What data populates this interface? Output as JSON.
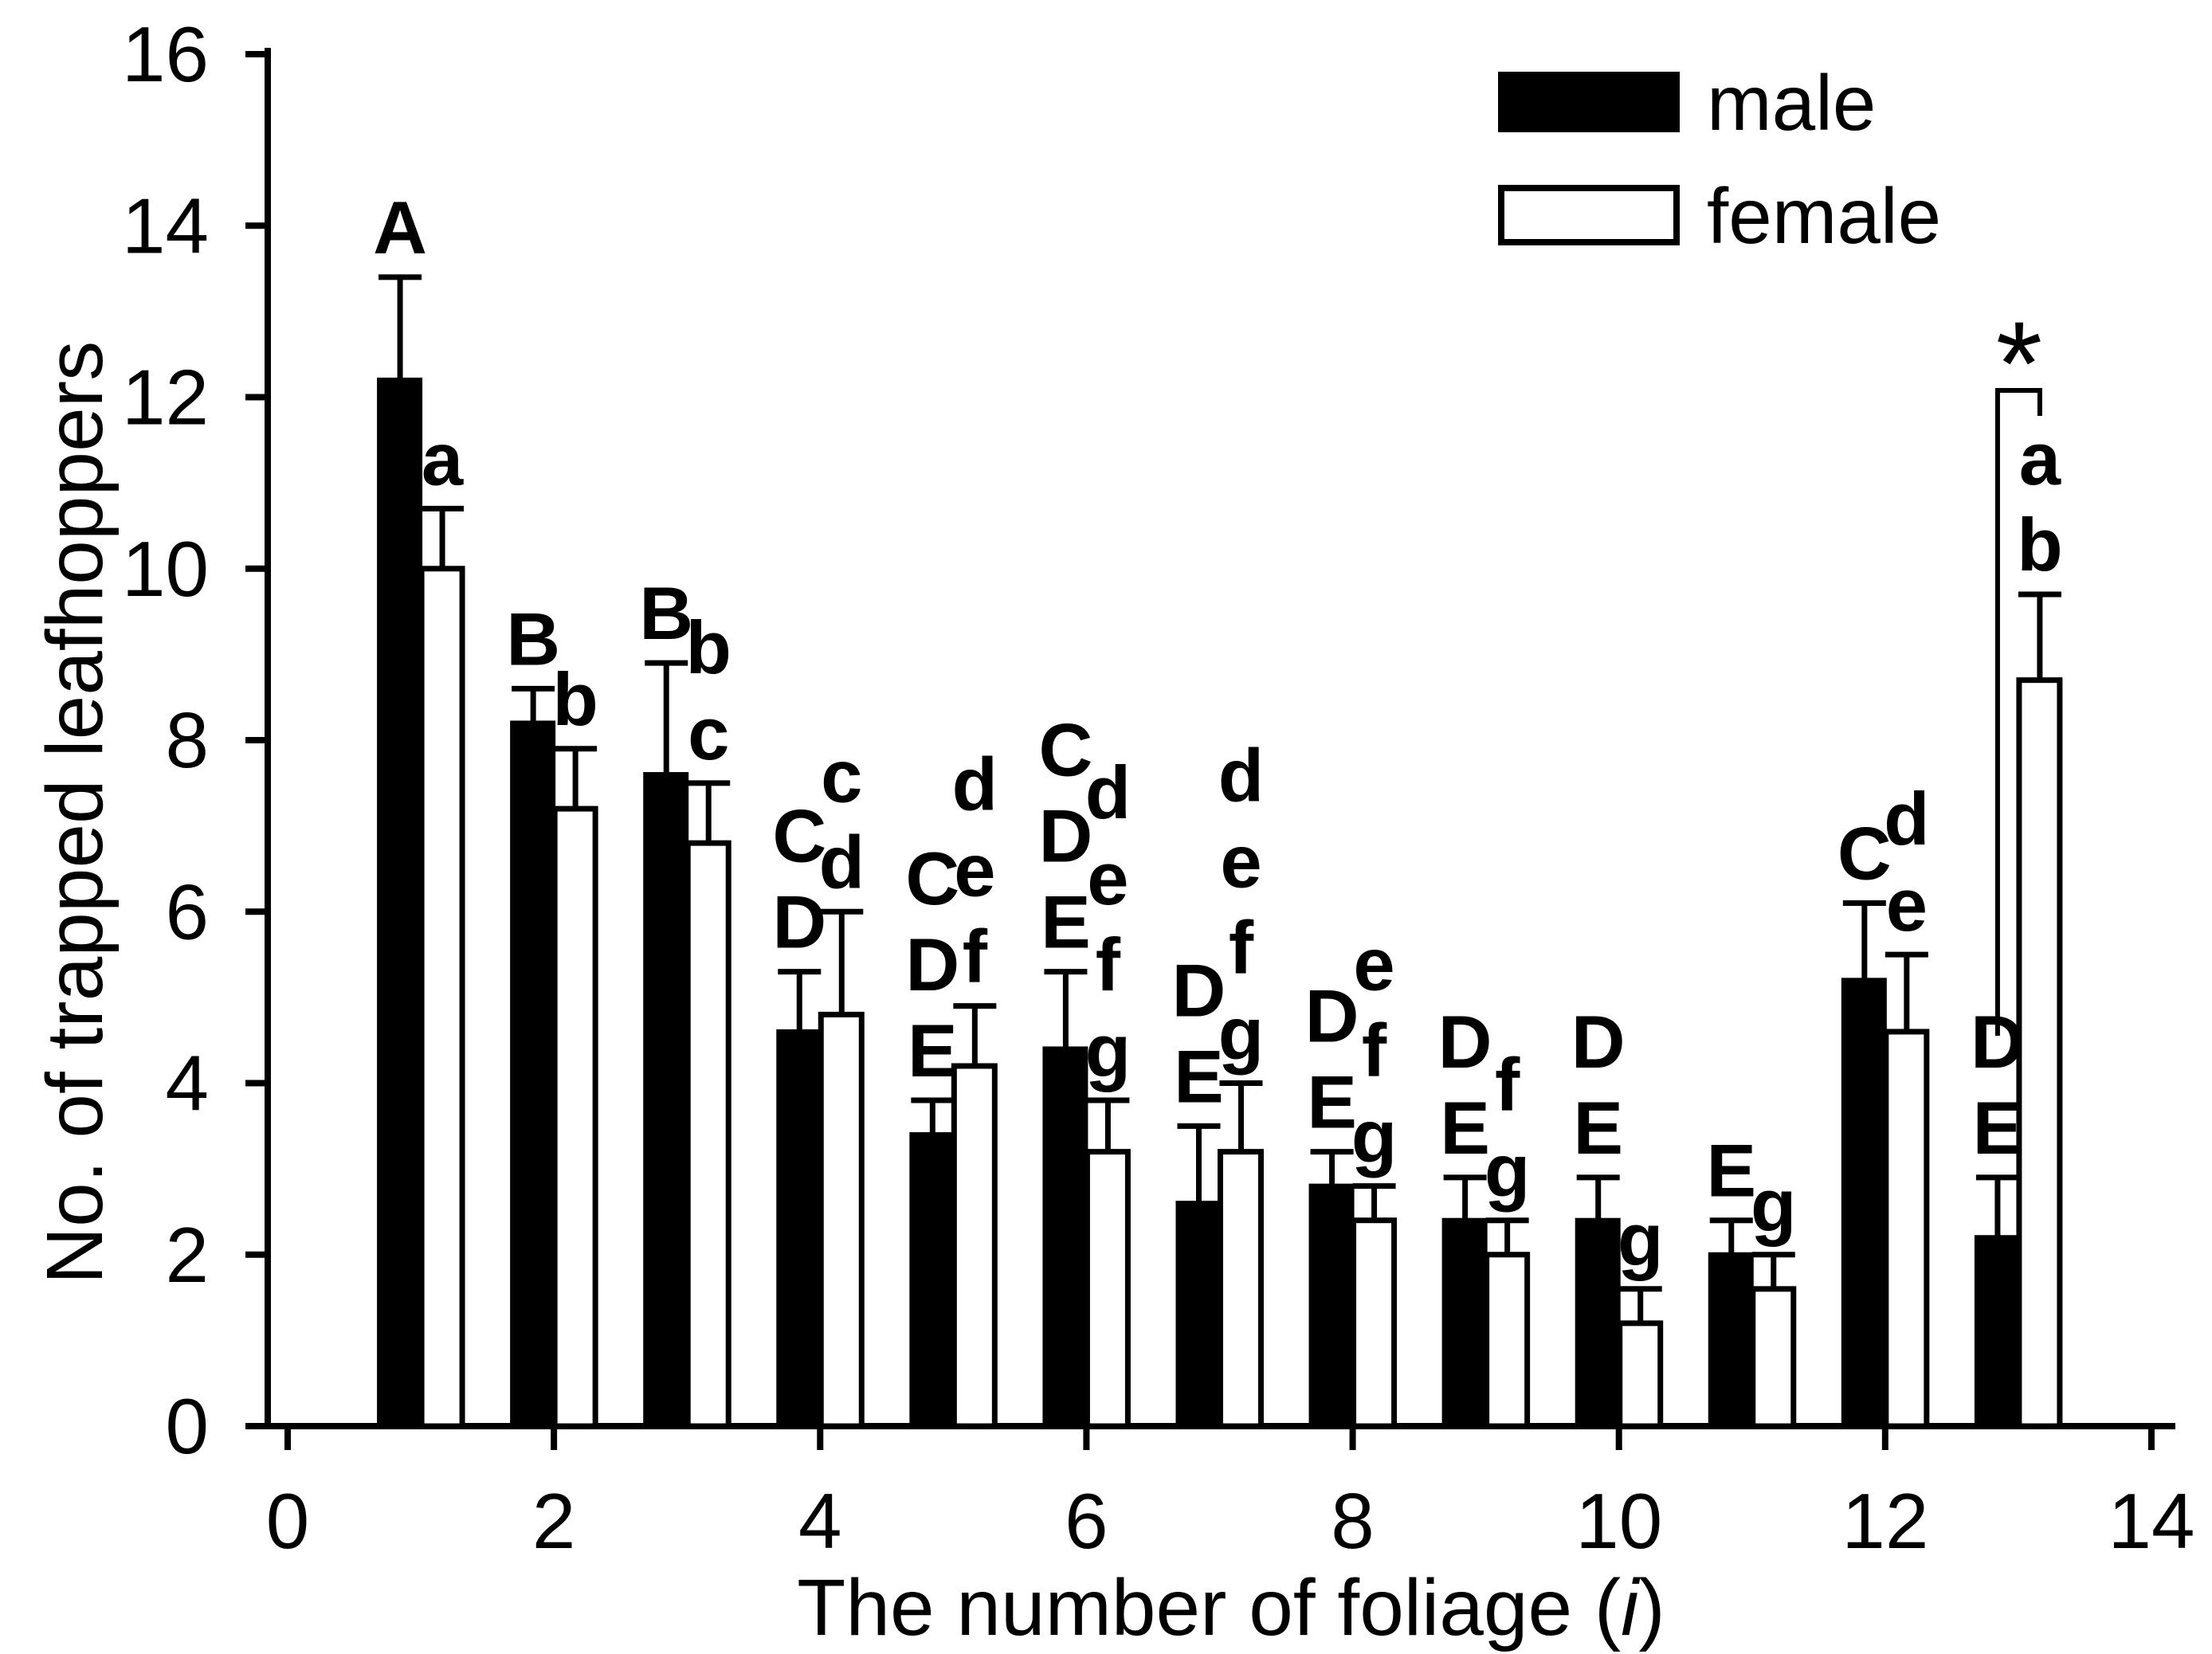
{
  "figure": {
    "background": "#ffffff",
    "ink": "#000000"
  },
  "legend": {
    "position": "top-right",
    "items": [
      {
        "label": "male",
        "fill": "#000000",
        "stroke": "#000000"
      },
      {
        "label": "female",
        "fill": "#ffffff",
        "stroke": "#000000"
      }
    ]
  },
  "axes": {
    "x_title_prefix": "The number of foliage (",
    "x_title_italic": "i",
    "x_title_suffix": ")",
    "y_title": "No. of trapped leafhoppers",
    "x_ticks": [
      0,
      2,
      4,
      6,
      8,
      10,
      12,
      14
    ],
    "y_ticks": [
      0,
      2,
      4,
      6,
      8,
      10,
      12,
      14,
      16
    ],
    "xlim": [
      0,
      14
    ],
    "ylim": [
      0,
      16
    ]
  },
  "chart_data": {
    "type": "bar",
    "title": "",
    "xlabel": "The number of foliage (i)",
    "ylabel": "No. of trapped leafhoppers",
    "xlim": [
      0,
      14
    ],
    "ylim": [
      0,
      16
    ],
    "grid": false,
    "legend_position": "top-right",
    "error_bars": "upper only",
    "categories": [
      1,
      2,
      3,
      4,
      5,
      6,
      7,
      8,
      9,
      10,
      11,
      12,
      13
    ],
    "series": [
      {
        "name": "male",
        "color": "#000000",
        "values": [
          12.2,
          8.2,
          7.6,
          4.6,
          3.4,
          4.4,
          2.6,
          2.8,
          2.4,
          2.4,
          2.0,
          5.2,
          2.2
        ],
        "errors": [
          1.2,
          0.4,
          1.3,
          0.7,
          0.4,
          0.9,
          0.9,
          0.4,
          0.5,
          0.5,
          0.4,
          0.9,
          0.7
        ],
        "letters": [
          [
            "A"
          ],
          [
            "B"
          ],
          [
            "B"
          ],
          [
            "C",
            "D"
          ],
          [
            "C",
            "D",
            "E"
          ],
          [
            "C",
            "D",
            "E"
          ],
          [
            "D",
            "E"
          ],
          [
            "D",
            "E"
          ],
          [
            "D",
            "E"
          ],
          [
            "D",
            "E"
          ],
          [
            "E"
          ],
          [
            "C"
          ],
          [
            "D",
            "E"
          ]
        ]
      },
      {
        "name": "female",
        "color": "#ffffff",
        "values": [
          10.0,
          7.2,
          6.8,
          4.8,
          4.2,
          3.2,
          3.2,
          2.4,
          2.0,
          1.2,
          1.6,
          4.6,
          8.7
        ],
        "errors": [
          0.7,
          0.7,
          0.7,
          1.2,
          0.7,
          0.6,
          0.8,
          0.4,
          0.4,
          0.4,
          0.4,
          0.9,
          1.0
        ],
        "letters": [
          [
            "a"
          ],
          [
            "b"
          ],
          [
            "b",
            "c"
          ],
          [
            "c",
            "d"
          ],
          [
            "d",
            "e",
            "f"
          ],
          [
            "d",
            "e",
            "f",
            "g"
          ],
          [
            "d",
            "e",
            "f",
            "g"
          ],
          [
            "e",
            "f",
            "g"
          ],
          [
            "f",
            "g"
          ],
          [
            "g"
          ],
          [
            "g"
          ],
          [
            "d",
            "e"
          ],
          [
            "a",
            "b"
          ]
        ]
      }
    ],
    "significance": {
      "symbol": "*",
      "group": 13,
      "compares": [
        "male",
        "female"
      ]
    }
  }
}
